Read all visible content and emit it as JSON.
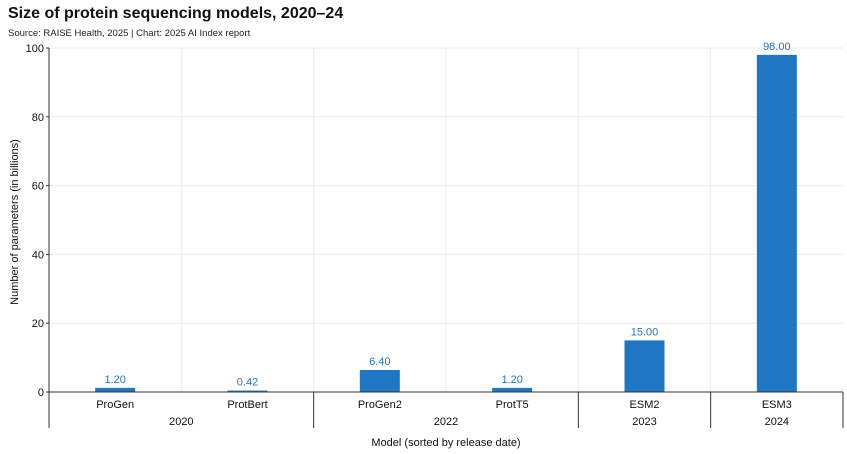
{
  "title": "Size of protein sequencing models, 2020–24",
  "source": "Source: RAISE Health, 2025 | Chart: 2025 AI Index report",
  "chart_data": {
    "type": "bar",
    "categories": [
      "ProGen",
      "ProtBert",
      "ProGen2",
      "ProtT5",
      "ESM2",
      "ESM3"
    ],
    "values": [
      1.2,
      0.42,
      6.4,
      1.2,
      15.0,
      98.0
    ],
    "data_labels": [
      "1.20",
      "0.42",
      "6.40",
      "1.20",
      "15.00",
      "98.00"
    ],
    "year_groups": [
      {
        "label": "2020",
        "start": 0,
        "end": 1
      },
      {
        "label": "2022",
        "start": 2,
        "end": 3
      },
      {
        "label": "2023",
        "start": 4,
        "end": 4
      },
      {
        "label": "2024",
        "start": 5,
        "end": 5
      }
    ],
    "xlabel": "Model (sorted by release date)",
    "ylabel": "Number of parameters (in billions)",
    "ylim": [
      0,
      100
    ],
    "yticks": [
      0,
      20,
      40,
      60,
      80,
      100
    ],
    "grid": true,
    "colors": {
      "bar": "#1f77c4",
      "label": "#1f77c4",
      "grid": "#ececec",
      "axis": "#333333"
    }
  }
}
